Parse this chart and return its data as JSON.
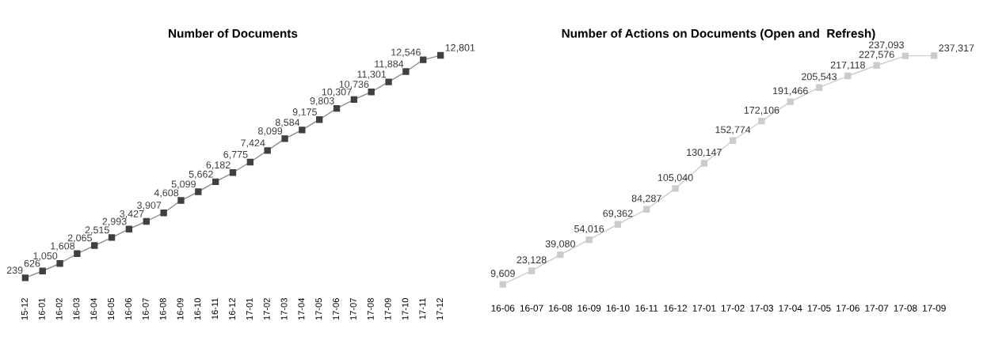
{
  "chart_data": [
    {
      "type": "line",
      "title": "Number of Documents",
      "categories": [
        "15-12",
        "16-01",
        "16-02",
        "16-03",
        "16-04",
        "16-05",
        "16-06",
        "16-07",
        "16-08",
        "16-09",
        "16-10",
        "16-11",
        "16-12",
        "17-01",
        "17-02",
        "17-03",
        "17-04",
        "17-05",
        "17-06",
        "17-07",
        "17-08",
        "17-09",
        "17-10",
        "17-11",
        "17-12"
      ],
      "series": [
        {
          "color": "#404040",
          "values": [
            239,
            626,
            1050,
            1608,
            2065,
            2515,
            2993,
            3427,
            3907,
            4608,
            5099,
            5662,
            6182,
            6775,
            7424,
            8099,
            8584,
            9175,
            9803,
            10307,
            10736,
            11301,
            11884,
            12546,
            12801
          ],
          "value_labels": [
            "239",
            "626",
            "1,050",
            "1,608",
            "2,065",
            "2,515",
            "2,993",
            "3,427",
            "3,907",
            "4,608",
            "5,099",
            "5,662",
            "6,182",
            "6,775",
            "7,424",
            "8,099",
            "8,584",
            "9,175",
            "9,803",
            "10,307",
            "10,736",
            "11,301",
            "11,884",
            "12,546",
            "12,801"
          ]
        }
      ],
      "marker": "square",
      "line_style": "solid",
      "grid": false,
      "legend": false,
      "tick_labels": "x"
    },
    {
      "type": "line",
      "title": "Number of Actions on Documents (Open and  Refresh)",
      "categories": [
        "16-06",
        "16-07",
        "16-08",
        "16-09",
        "16-10",
        "16-11",
        "16-12",
        "17-01",
        "17-02",
        "17-03",
        "17-04",
        "17-05",
        "17-06",
        "17-07",
        "17-08",
        "17-09"
      ],
      "series": [
        {
          "color": "#cccccc",
          "values": [
            9609,
            23128,
            39080,
            54016,
            69362,
            84287,
            105040,
            130147,
            152774,
            172106,
            191466,
            205543,
            217118,
            227576,
            237093,
            237317
          ],
          "value_labels": [
            "9,609",
            "23,128",
            "39,080",
            "54,016",
            "69,362",
            "84,287",
            "105,040",
            "130,147",
            "152,774",
            "172,106",
            "191,466",
            "205,543",
            "217,118",
            "227,576",
            "237,093",
            "237,317"
          ]
        }
      ],
      "marker": "square",
      "line_style": "solid",
      "grid": false,
      "legend": false,
      "tick_labels": "x"
    }
  ]
}
